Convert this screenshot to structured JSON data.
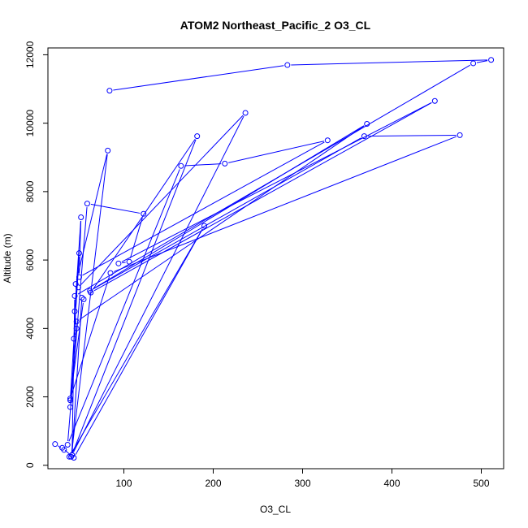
{
  "chart_data": {
    "type": "line",
    "title": "ATOM2 Northeast_Pacific_2 O3_CL",
    "xlabel": "O3_CL",
    "ylabel": "Altitude (m)",
    "xlim": [
      15,
      525
    ],
    "ylim": [
      -100,
      12200
    ],
    "x_ticks": [
      100,
      200,
      300,
      400,
      500
    ],
    "y_ticks": [
      0,
      2000,
      4000,
      6000,
      8000,
      10000,
      12000
    ],
    "grid": false,
    "legend": "none",
    "colors": {
      "series": "#0000ff",
      "axis": "#000000"
    },
    "series": [
      {
        "points": [
          {
            "x": 84,
            "y": 10950
          },
          {
            "x": 283,
            "y": 11700
          },
          {
            "x": 511,
            "y": 11850
          },
          {
            "x": 491,
            "y": 11750
          },
          {
            "x": 45,
            "y": 4950
          },
          {
            "x": 42,
            "y": 300
          },
          {
            "x": 236,
            "y": 10300
          },
          {
            "x": 49,
            "y": 5200
          },
          {
            "x": 46,
            "y": 5300
          },
          {
            "x": 82,
            "y": 9200
          },
          {
            "x": 41,
            "y": 250
          },
          {
            "x": 182,
            "y": 9620
          },
          {
            "x": 63,
            "y": 5050
          },
          {
            "x": 448,
            "y": 10650
          },
          {
            "x": 94,
            "y": 5900
          },
          {
            "x": 106,
            "y": 5950
          },
          {
            "x": 122,
            "y": 7350
          },
          {
            "x": 59,
            "y": 7650
          },
          {
            "x": 37,
            "y": 600
          },
          {
            "x": 164,
            "y": 8750
          },
          {
            "x": 213,
            "y": 8820
          },
          {
            "x": 328,
            "y": 9500
          },
          {
            "x": 50,
            "y": 5500
          },
          {
            "x": 52,
            "y": 7250
          },
          {
            "x": 45,
            "y": 4500
          },
          {
            "x": 47,
            "y": 4000
          },
          {
            "x": 44,
            "y": 3700
          },
          {
            "x": 50,
            "y": 6200
          },
          {
            "x": 40,
            "y": 1900
          },
          {
            "x": 40,
            "y": 1700
          },
          {
            "x": 47,
            "y": 4200
          },
          {
            "x": 372,
            "y": 9980
          },
          {
            "x": 62,
            "y": 5100
          },
          {
            "x": 369,
            "y": 9620
          },
          {
            "x": 476,
            "y": 9650
          },
          {
            "x": 85,
            "y": 5620
          },
          {
            "x": 40,
            "y": 1950
          },
          {
            "x": 55,
            "y": 4850
          },
          {
            "x": 53,
            "y": 4900
          },
          {
            "x": 42,
            "y": 300
          },
          {
            "x": 39,
            "y": 250
          },
          {
            "x": 190,
            "y": 7000
          },
          {
            "x": 44,
            "y": 220
          },
          {
            "x": 31,
            "y": 510
          },
          {
            "x": 23,
            "y": 620
          },
          {
            "x": 33,
            "y": 450
          }
        ]
      }
    ]
  }
}
